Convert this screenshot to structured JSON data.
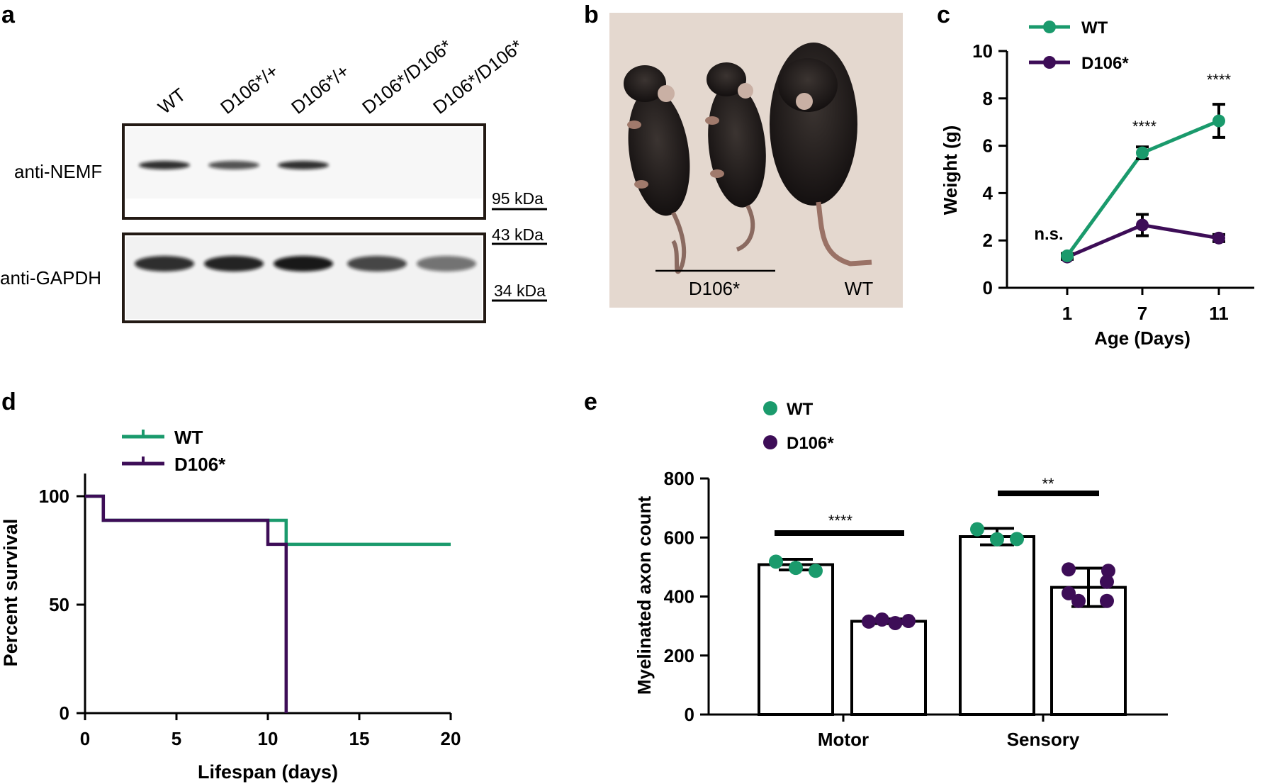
{
  "colors": {
    "wt": "#1a9a6c",
    "d106": "#3d0d57",
    "axis": "#000000"
  },
  "panel_a": {
    "letter": "a",
    "lanes": [
      "WT",
      "D106*/+",
      "D106*/+",
      "D106*/D106*",
      "D106*/D106*"
    ],
    "blot_labels": [
      "anti-NEMF",
      "anti-GAPDH"
    ],
    "markers": [
      "95 kDa",
      "43 kDa",
      "34 kDa"
    ],
    "nemf_band_intensity": [
      0.85,
      0.7,
      0.85,
      0.0,
      0.0
    ],
    "gapdh_band_intensity": [
      0.85,
      0.9,
      0.95,
      0.75,
      0.55
    ]
  },
  "panel_b": {
    "letter": "b",
    "labels": [
      "D106*",
      "WT"
    ]
  },
  "chart_data": [
    {
      "panel": "c",
      "type": "line",
      "xlabel": "Age (Days)",
      "ylabel": "Weight (g)",
      "categories": [
        "1",
        "7",
        "11"
      ],
      "ylim": [
        0,
        10
      ],
      "yticks": [
        "0",
        "2",
        "4",
        "6",
        "8",
        "10"
      ],
      "series": [
        {
          "name": "WT",
          "values": [
            1.35,
            5.7,
            7.05
          ],
          "err": [
            0.1,
            0.25,
            0.7
          ]
        },
        {
          "name": "D106*",
          "values": [
            1.3,
            2.65,
            2.1
          ],
          "err": [
            0.1,
            0.45,
            0.15
          ]
        }
      ],
      "annotations": [
        "n.s.",
        "****",
        "****"
      ],
      "legend": "top-left"
    },
    {
      "panel": "d",
      "type": "line",
      "xlabel": "Lifespan (days)",
      "ylabel": "Percent survival",
      "xlim": [
        0,
        20
      ],
      "ylim": [
        0,
        100
      ],
      "xticks": [
        "0",
        "5",
        "10",
        "15",
        "20"
      ],
      "yticks": [
        "0",
        "50",
        "100"
      ],
      "series": [
        {
          "name": "WT",
          "steps": [
            [
              0,
              100
            ],
            [
              1,
              100
            ],
            [
              1,
              88.9
            ],
            [
              11,
              88.9
            ],
            [
              11,
              77.8
            ],
            [
              20,
              77.8
            ]
          ]
        },
        {
          "name": "D106*",
          "steps": [
            [
              0,
              100
            ],
            [
              1,
              100
            ],
            [
              1,
              88.9
            ],
            [
              10,
              88.9
            ],
            [
              10,
              77.8
            ],
            [
              11,
              77.8
            ],
            [
              11,
              0
            ]
          ]
        }
      ],
      "legend": "top-left"
    },
    {
      "panel": "e",
      "type": "bar",
      "ylabel": "Myelinated axon count",
      "categories": [
        "Motor",
        "Sensory"
      ],
      "ylim": [
        0,
        800
      ],
      "yticks": [
        "0",
        "200",
        "400",
        "600",
        "800"
      ],
      "series": [
        {
          "name": "WT",
          "values": [
            508,
            603
          ],
          "err": [
            18,
            28
          ],
          "points": [
            [
              518,
              497,
              487
            ],
            [
              628,
              594,
              595
            ]
          ]
        },
        {
          "name": "D106*",
          "values": [
            316,
            431
          ],
          "err": [
            8,
            65
          ],
          "points": [
            [
              315,
              322,
              310,
              317
            ],
            [
              492,
              487,
              450,
              411,
              385,
              385
            ]
          ]
        }
      ],
      "annotations": [
        "****",
        "**"
      ],
      "legend": "top-left"
    }
  ],
  "panel_letters": {
    "c": "c",
    "d": "d",
    "e": "e"
  }
}
